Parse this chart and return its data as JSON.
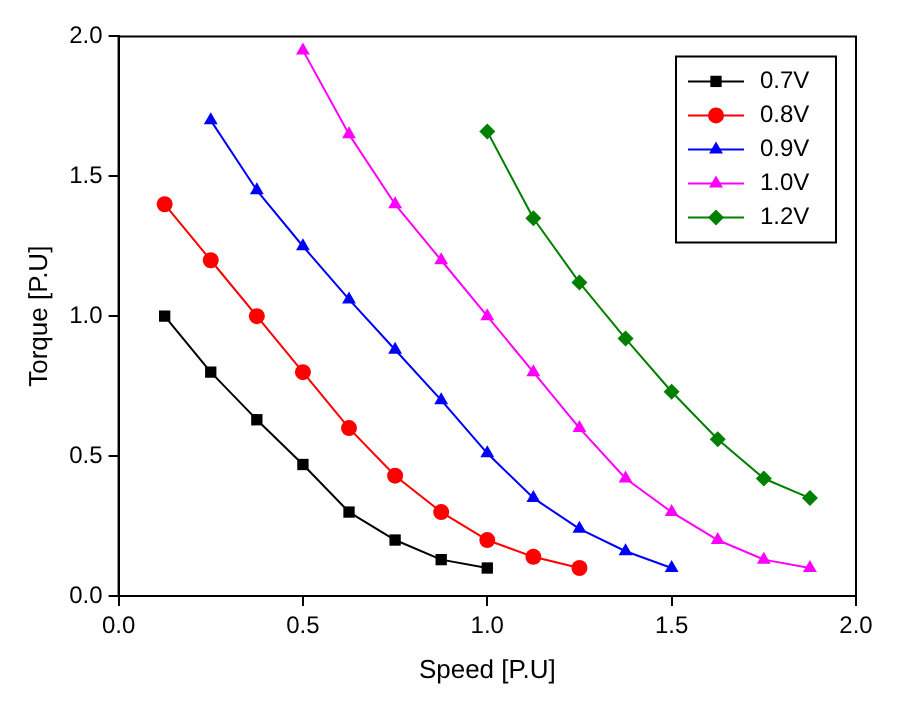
{
  "chart_data": {
    "type": "line",
    "xlabel": "Speed [P.U]",
    "ylabel": "Torque [P.U]",
    "xlim": [
      0,
      2
    ],
    "xticks": [
      {
        "value": 0,
        "label": "0.0"
      },
      {
        "value": 0.5,
        "label": "0.5"
      },
      {
        "value": 1,
        "label": "1.0"
      },
      {
        "value": 1.5,
        "label": "1.5"
      },
      {
        "value": 2,
        "label": "2.0"
      }
    ],
    "ylim": [
      0,
      2
    ],
    "yticks": [
      {
        "value": 0,
        "label": "0.0"
      },
      {
        "value": 0.5,
        "label": "0.5"
      },
      {
        "value": 1,
        "label": "1.0"
      },
      {
        "value": 1.5,
        "label": "1.5"
      },
      {
        "value": 2,
        "label": "2.0"
      }
    ],
    "grid": false,
    "legend": "top right",
    "line_style": "solid",
    "series": [
      {
        "name": "0.7V",
        "color": "#000000",
        "marker": "square",
        "x": [
          0.125,
          0.25,
          0.375,
          0.5,
          0.625,
          0.75,
          0.875,
          1.0
        ],
        "values": [
          1.0,
          0.8,
          0.63,
          0.47,
          0.3,
          0.2,
          0.13,
          0.1
        ]
      },
      {
        "name": "0.8V",
        "color": "#ff0000",
        "marker": "circle",
        "x": [
          0.125,
          0.25,
          0.375,
          0.5,
          0.625,
          0.75,
          0.875,
          1.0,
          1.125,
          1.25
        ],
        "values": [
          1.4,
          1.2,
          1.0,
          0.8,
          0.6,
          0.43,
          0.3,
          0.2,
          0.14,
          0.1
        ]
      },
      {
        "name": "0.9V",
        "color": "#0000ff",
        "marker": "triangle",
        "x": [
          0.25,
          0.375,
          0.5,
          0.625,
          0.75,
          0.875,
          1.0,
          1.125,
          1.25,
          1.375,
          1.5
        ],
        "values": [
          1.7,
          1.45,
          1.25,
          1.06,
          0.88,
          0.7,
          0.51,
          0.35,
          0.24,
          0.16,
          0.1
        ]
      },
      {
        "name": "1.0V",
        "color": "#ff00ff",
        "marker": "triangle",
        "x": [
          0.5,
          0.625,
          0.75,
          0.875,
          1.0,
          1.125,
          1.25,
          1.375,
          1.5,
          1.625,
          1.75,
          1.875
        ],
        "values": [
          1.95,
          1.65,
          1.4,
          1.2,
          1.0,
          0.8,
          0.6,
          0.42,
          0.3,
          0.2,
          0.13,
          0.1
        ]
      },
      {
        "name": "1.2V",
        "color": "#008000",
        "marker": "diamond",
        "x": [
          1.0,
          1.125,
          1.25,
          1.375,
          1.5,
          1.625,
          1.75,
          1.875
        ],
        "values": [
          1.66,
          1.35,
          1.12,
          0.92,
          0.73,
          0.56,
          0.42,
          0.35
        ]
      }
    ]
  }
}
